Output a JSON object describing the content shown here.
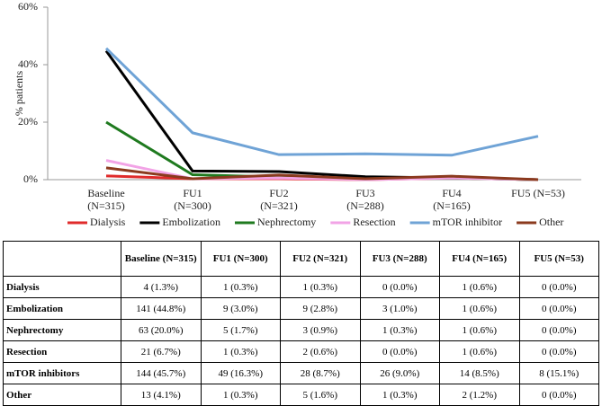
{
  "chart_data": {
    "type": "line",
    "y_label": "% patients",
    "categories": [
      "Baseline (N=315)",
      "FU1 (N=300)",
      "FU2 (N=321)",
      "FU3 (N=288)",
      "FU4 (N=165)",
      "FU5 (N=53)"
    ],
    "series": [
      {
        "name": "Dialysis",
        "color": "#e02b2b",
        "values": [
          1.3,
          0.3,
          0.3,
          0.0,
          0.6,
          0.0
        ]
      },
      {
        "name": "Embolization",
        "color": "#000000",
        "values": [
          44.8,
          3.0,
          2.8,
          1.0,
          0.6,
          0.0
        ]
      },
      {
        "name": "Nephrectomy",
        "color": "#1f7a1f",
        "values": [
          20.0,
          1.7,
          0.9,
          0.3,
          0.6,
          0.0
        ]
      },
      {
        "name": "Resection",
        "color": "#f2a3e6",
        "values": [
          6.7,
          0.3,
          0.6,
          0.0,
          0.6,
          0.0
        ]
      },
      {
        "name": "mTOR inhibitor",
        "color": "#6fa3d6",
        "values": [
          45.7,
          16.3,
          8.7,
          9.0,
          8.5,
          15.1
        ]
      },
      {
        "name": "Other",
        "color": "#8b3a1e",
        "values": [
          4.1,
          0.3,
          1.6,
          0.3,
          1.2,
          0.0
        ]
      }
    ],
    "ylim": [
      0,
      60
    ],
    "yticks": [
      {
        "value": 0,
        "label": "0%"
      },
      {
        "value": 20,
        "label": "20%"
      },
      {
        "value": 40,
        "label": "40%"
      },
      {
        "value": 60,
        "label": "60%"
      }
    ],
    "legend": "bottom"
  },
  "table": {
    "header": [
      "Baseline (N=315)",
      "FU1 (N=300)",
      "FU2 (N=321)",
      "FU3 (N=288)",
      "FU4 (N=165)",
      "FU5 (N=53)"
    ],
    "rows": [
      [
        "Dialysis",
        "4 (1.3%)",
        "1 (0.3%)",
        "1 (0.3%)",
        "0 (0.0%)",
        "1 (0.6%)",
        "0 (0.0%)"
      ],
      [
        "Embolization",
        "141 (44.8%)",
        "9 (3.0%)",
        "9 (2.8%)",
        "3 (1.0%)",
        "1 (0.6%)",
        "0 (0.0%)"
      ],
      [
        "Nephrectomy",
        "63 (20.0%)",
        "5 (1.7%)",
        "3 (0.9%)",
        "1 (0.3%)",
        "1 (0.6%)",
        "0 (0.0%)"
      ],
      [
        "Resection",
        "21 (6.7%)",
        "1 (0.3%)",
        "2 (0.6%)",
        "0 (0.0%)",
        "1 (0.6%)",
        "0 (0.0%)"
      ],
      [
        "mTOR inhibitors",
        "144 (45.7%)",
        "49 (16.3%)",
        "28 (8.7%)",
        "26 (9.0%)",
        "14 (8.5%)",
        "8 (15.1%)"
      ],
      [
        "Other",
        "13 (4.1%)",
        "1 (0.3%)",
        "5 (1.6%)",
        "1 (0.3%)",
        "2 (1.2%)",
        "0 (0.0%)"
      ]
    ]
  }
}
